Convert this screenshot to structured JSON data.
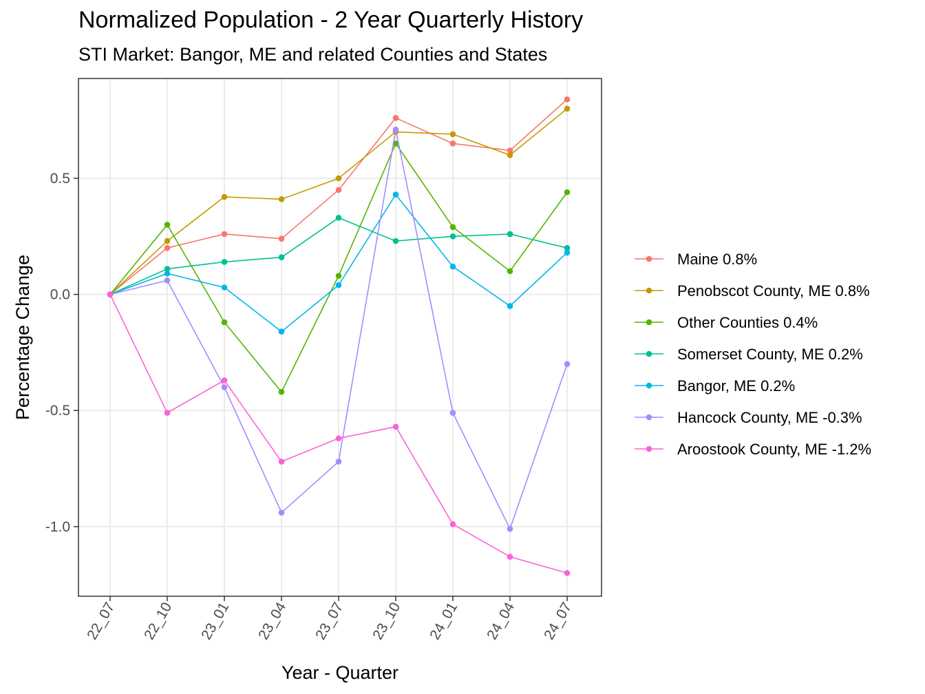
{
  "chart_data": {
    "type": "line",
    "title": "Normalized Population - 2 Year Quarterly History",
    "subtitle": "STI Market: Bangor, ME and related Counties and States",
    "xlabel": "Year - Quarter",
    "ylabel": "Percentage Change",
    "categories": [
      "22_07",
      "22_10",
      "23_01",
      "23_04",
      "23_07",
      "23_10",
      "24_01",
      "24_04",
      "24_07"
    ],
    "ylim": [
      -1.3,
      0.93
    ],
    "yticks": [
      -1.0,
      -0.5,
      0.0,
      0.5
    ],
    "ytick_labels": [
      "-1.0",
      "-0.5",
      "0.0",
      "0.5"
    ],
    "grid": true,
    "legend_position": "right",
    "series": [
      {
        "name": "Maine 0.8%",
        "color": "#F8766D",
        "values": [
          0.0,
          0.2,
          0.26,
          0.24,
          0.45,
          0.76,
          0.65,
          0.62,
          0.84
        ]
      },
      {
        "name": "Penobscot County, ME 0.8%",
        "color": "#C49A00",
        "values": [
          0.0,
          0.23,
          0.42,
          0.41,
          0.5,
          0.7,
          0.69,
          0.6,
          0.8
        ]
      },
      {
        "name": "Other Counties 0.4%",
        "color": "#53B400",
        "values": [
          0.0,
          0.3,
          -0.12,
          -0.42,
          0.08,
          0.65,
          0.29,
          0.1,
          0.44
        ]
      },
      {
        "name": "Somerset County, ME 0.2%",
        "color": "#00C094",
        "values": [
          0.0,
          0.11,
          0.14,
          0.16,
          0.33,
          0.23,
          0.25,
          0.26,
          0.2
        ]
      },
      {
        "name": "Bangor, ME 0.2%",
        "color": "#00B6EB",
        "values": [
          0.0,
          0.09,
          0.03,
          -0.16,
          0.04,
          0.43,
          0.12,
          -0.05,
          0.18
        ]
      },
      {
        "name": "Hancock County, ME -0.3%",
        "color": "#A58AFF",
        "values": [
          0.0,
          0.06,
          -0.4,
          -0.94,
          -0.72,
          0.71,
          -0.51,
          -1.01,
          -0.3
        ]
      },
      {
        "name": "Aroostook County, ME -1.2%",
        "color": "#FB61D7",
        "values": [
          0.0,
          -0.51,
          -0.37,
          -0.72,
          -0.62,
          -0.57,
          -0.99,
          -1.13,
          -1.2
        ]
      }
    ]
  }
}
